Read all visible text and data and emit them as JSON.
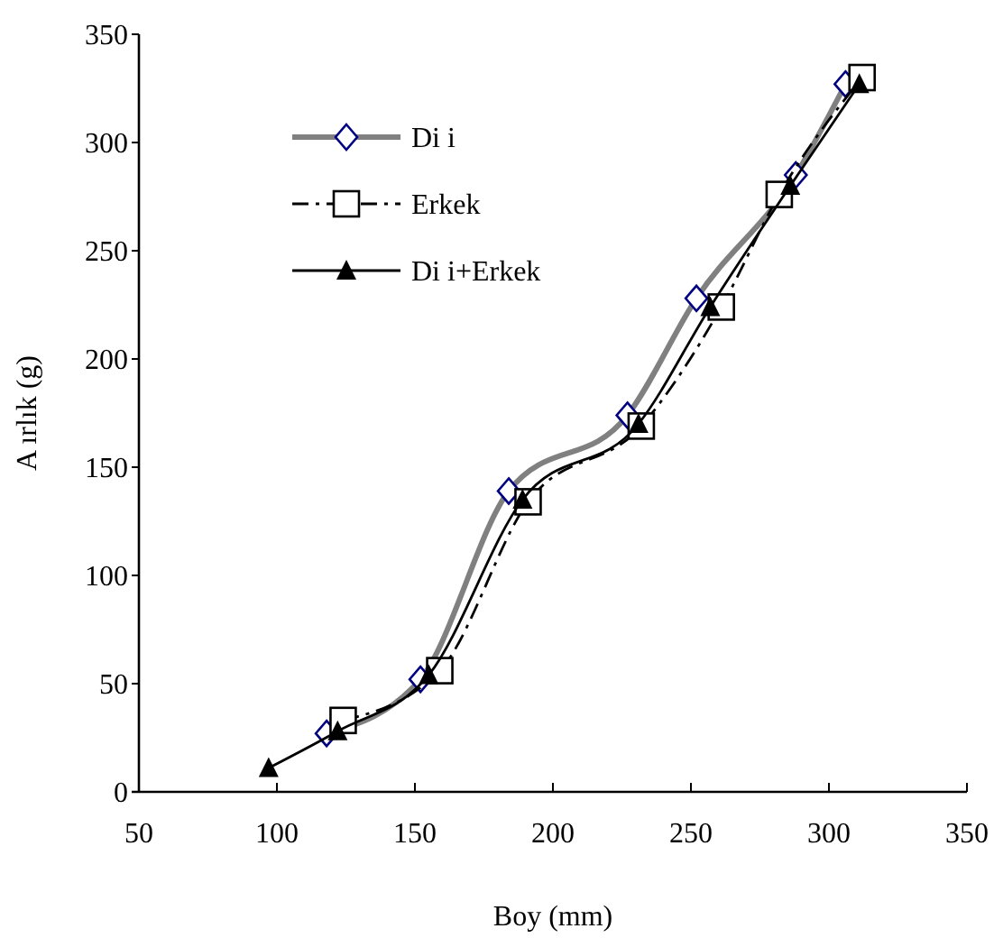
{
  "chart_data": {
    "type": "line",
    "xlabel": "Boy (mm)",
    "ylabel": "A ırlık (g)",
    "xlim": [
      50,
      350
    ],
    "xticks": [
      50,
      100,
      150,
      200,
      250,
      300,
      350
    ],
    "ylim": [
      0,
      350
    ],
    "yticks": [
      0,
      50,
      100,
      150,
      200,
      250,
      300,
      350
    ],
    "grid": false,
    "legend": "top left",
    "series": [
      {
        "name": "Di i",
        "color": "#808080",
        "marker": "diamond",
        "line_style": "solid",
        "x": [
          118,
          152,
          184,
          227,
          252,
          288,
          306
        ],
        "values": [
          27,
          52,
          139,
          174,
          228,
          285,
          327
        ]
      },
      {
        "name": "Erkek",
        "color": "#000000",
        "marker": "square",
        "line_style": "dashed",
        "x": [
          124,
          159,
          191,
          232,
          261,
          282,
          312
        ],
        "values": [
          33,
          56,
          134,
          169,
          224,
          276,
          330
        ]
      },
      {
        "name": "Di i+Erkek",
        "color": "#000000",
        "marker": "triangle",
        "line_style": "solid",
        "x": [
          97,
          122,
          155,
          189,
          231,
          257,
          286,
          311
        ],
        "values": [
          11,
          28,
          54,
          135,
          170,
          224,
          280,
          327
        ]
      }
    ]
  }
}
